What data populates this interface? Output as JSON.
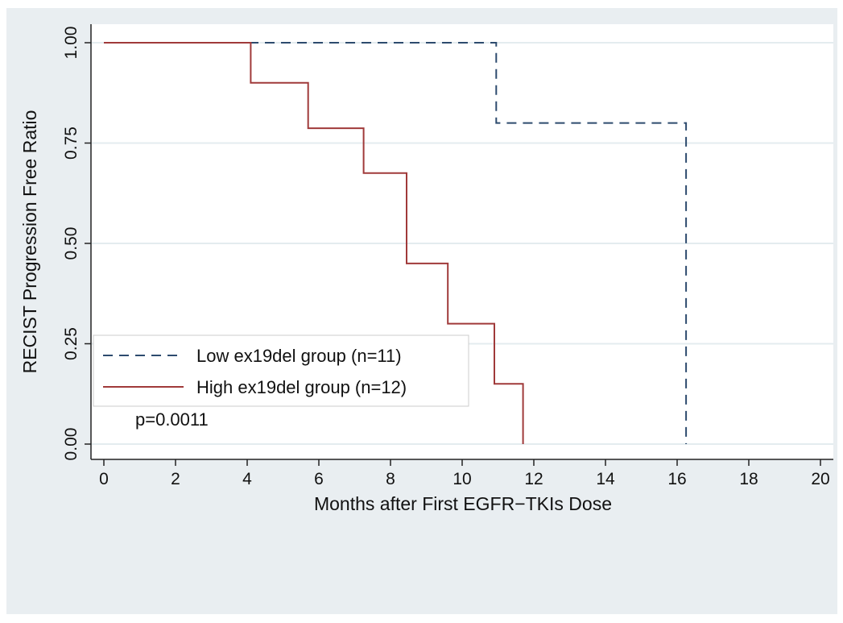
{
  "chart_data": {
    "type": "line",
    "title": "",
    "xlabel": "Months after First EGFR−TKIs Dose",
    "ylabel": "RECIST Progression Free Ratio",
    "xlim": [
      0,
      20
    ],
    "ylim": [
      0,
      1
    ],
    "x_ticks": [
      "0",
      "2",
      "4",
      "6",
      "8",
      "10",
      "12",
      "14",
      "16",
      "18",
      "20"
    ],
    "y_ticks": [
      "0.00",
      "0.25",
      "0.50",
      "0.75",
      "1.00"
    ],
    "grid": true,
    "legend_position": "bottom-left",
    "series": [
      {
        "name": "Low ex19del group (n=11)",
        "color": "#2d4b6e",
        "dash": "dashed",
        "x": [
          0,
          10.95,
          10.95,
          16.25,
          16.25
        ],
        "y": [
          1.0,
          1.0,
          0.8,
          0.8,
          0.0
        ]
      },
      {
        "name": "High ex19del group (n=12)",
        "color": "#a03a3a",
        "dash": "solid",
        "x": [
          0,
          4.1,
          4.1,
          5.7,
          5.7,
          7.25,
          7.25,
          8.45,
          8.45,
          9.6,
          9.6,
          10.9,
          10.9,
          11.7,
          11.7
        ],
        "y": [
          1.0,
          1.0,
          0.9,
          0.9,
          0.787,
          0.787,
          0.675,
          0.675,
          0.45,
          0.45,
          0.3,
          0.3,
          0.15,
          0.15,
          0.0
        ]
      }
    ],
    "annotation": "p=0.0011"
  }
}
